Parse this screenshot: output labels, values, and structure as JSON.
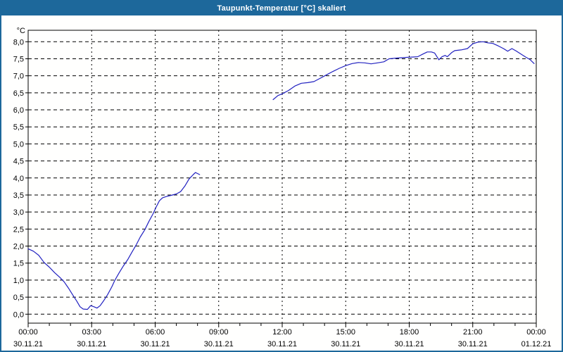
{
  "window": {
    "title": "Taupunkt-Temperatur [°C] skaliert"
  },
  "colors": {
    "titlebar": "#1d689b",
    "window_border": "#1d689b",
    "plot_border": "#000000",
    "grid": "#000000",
    "text": "#000000",
    "line": "#2121c0",
    "background": "#fffffe"
  },
  "chart_data": {
    "type": "line",
    "title": "Taupunkt-Temperatur [°C] skaliert",
    "ylabel": "°C",
    "xlabel": "",
    "ylim": [
      -0.26,
      8.34
    ],
    "ytick_step": 0.5,
    "grid": "dashed",
    "legend": "none",
    "x_hours_span": 24,
    "minor_tick_every_hours": 1,
    "yticks": [
      {
        "value": 8.0,
        "label": "8,0"
      },
      {
        "value": 7.5,
        "label": "7,5"
      },
      {
        "value": 7.0,
        "label": "7,0"
      },
      {
        "value": 6.5,
        "label": "6,5"
      },
      {
        "value": 6.0,
        "label": "6,0"
      },
      {
        "value": 5.5,
        "label": "5,5"
      },
      {
        "value": 5.0,
        "label": "5,0"
      },
      {
        "value": 4.5,
        "label": "4,5"
      },
      {
        "value": 4.0,
        "label": "4,0"
      },
      {
        "value": 3.5,
        "label": "3,5"
      },
      {
        "value": 3.0,
        "label": "3,0"
      },
      {
        "value": 2.5,
        "label": "2,5"
      },
      {
        "value": 2.0,
        "label": "2,0"
      },
      {
        "value": 1.5,
        "label": "1,5"
      },
      {
        "value": 1.0,
        "label": "1,0"
      },
      {
        "value": 0.5,
        "label": "0,5"
      },
      {
        "value": 0.0,
        "label": "0,0"
      }
    ],
    "xticks": [
      {
        "hour": 0,
        "time": "00:00",
        "date": "30.11.21"
      },
      {
        "hour": 3,
        "time": "03:00",
        "date": "30.11.21"
      },
      {
        "hour": 6,
        "time": "06:00",
        "date": "30.11.21"
      },
      {
        "hour": 9,
        "time": "09:00",
        "date": "30.11.21"
      },
      {
        "hour": 12,
        "time": "12:00",
        "date": "30.11.21"
      },
      {
        "hour": 15,
        "time": "15:00",
        "date": "30.11.21"
      },
      {
        "hour": 18,
        "time": "18:00",
        "date": "30.11.21"
      },
      {
        "hour": 21,
        "time": "21:00",
        "date": "30.11.21"
      },
      {
        "hour": 24,
        "time": "00:00",
        "date": "01.12.21"
      }
    ],
    "series": [
      {
        "points": [
          [
            0.0,
            1.92
          ],
          [
            0.25,
            1.85
          ],
          [
            0.5,
            1.73
          ],
          [
            0.75,
            1.52
          ],
          [
            1.0,
            1.38
          ],
          [
            1.25,
            1.22
          ],
          [
            1.5,
            1.08
          ],
          [
            1.7,
            0.95
          ],
          [
            1.9,
            0.77
          ],
          [
            2.1,
            0.57
          ],
          [
            2.3,
            0.38
          ],
          [
            2.45,
            0.22
          ],
          [
            2.6,
            0.15
          ],
          [
            2.8,
            0.14
          ],
          [
            2.95,
            0.25
          ],
          [
            3.1,
            0.22
          ],
          [
            3.25,
            0.18
          ],
          [
            3.4,
            0.25
          ],
          [
            3.55,
            0.38
          ],
          [
            3.75,
            0.57
          ],
          [
            3.95,
            0.8
          ],
          [
            4.1,
            1.0
          ],
          [
            4.3,
            1.22
          ],
          [
            4.5,
            1.42
          ],
          [
            4.7,
            1.6
          ],
          [
            4.9,
            1.82
          ],
          [
            5.1,
            2.03
          ],
          [
            5.3,
            2.27
          ],
          [
            5.5,
            2.47
          ],
          [
            5.7,
            2.72
          ],
          [
            5.9,
            2.95
          ],
          [
            6.05,
            3.15
          ],
          [
            6.2,
            3.33
          ],
          [
            6.35,
            3.42
          ],
          [
            6.55,
            3.46
          ],
          [
            6.75,
            3.49
          ],
          [
            7.0,
            3.53
          ],
          [
            7.2,
            3.6
          ],
          [
            7.4,
            3.76
          ],
          [
            7.6,
            3.97
          ],
          [
            7.8,
            4.1
          ],
          [
            7.9,
            4.16
          ],
          [
            8.0,
            4.13
          ],
          [
            8.1,
            4.1
          ]
        ]
      },
      {
        "points": [
          [
            11.57,
            6.3
          ],
          [
            11.8,
            6.42
          ],
          [
            12.0,
            6.47
          ],
          [
            12.3,
            6.57
          ],
          [
            12.6,
            6.7
          ],
          [
            12.9,
            6.78
          ],
          [
            13.2,
            6.8
          ],
          [
            13.5,
            6.83
          ],
          [
            13.8,
            6.93
          ],
          [
            14.1,
            7.03
          ],
          [
            14.4,
            7.13
          ],
          [
            14.7,
            7.22
          ],
          [
            15.0,
            7.3
          ],
          [
            15.3,
            7.36
          ],
          [
            15.6,
            7.39
          ],
          [
            15.9,
            7.38
          ],
          [
            16.2,
            7.35
          ],
          [
            16.5,
            7.38
          ],
          [
            16.8,
            7.41
          ],
          [
            17.05,
            7.5
          ],
          [
            17.4,
            7.52
          ],
          [
            17.8,
            7.54
          ],
          [
            18.1,
            7.55
          ],
          [
            18.4,
            7.56
          ],
          [
            18.65,
            7.64
          ],
          [
            18.85,
            7.7
          ],
          [
            19.05,
            7.7
          ],
          [
            19.2,
            7.67
          ],
          [
            19.4,
            7.47
          ],
          [
            19.55,
            7.56
          ],
          [
            19.7,
            7.6
          ],
          [
            19.8,
            7.56
          ],
          [
            20.0,
            7.68
          ],
          [
            20.15,
            7.74
          ],
          [
            20.45,
            7.76
          ],
          [
            20.75,
            7.8
          ],
          [
            21.0,
            7.94
          ],
          [
            21.25,
            7.99
          ],
          [
            21.5,
            8.0
          ],
          [
            21.7,
            7.97
          ],
          [
            21.95,
            7.95
          ],
          [
            22.2,
            7.88
          ],
          [
            22.45,
            7.8
          ],
          [
            22.65,
            7.72
          ],
          [
            22.85,
            7.8
          ],
          [
            23.05,
            7.73
          ],
          [
            23.25,
            7.65
          ],
          [
            23.5,
            7.55
          ],
          [
            23.7,
            7.48
          ],
          [
            23.9,
            7.36
          ]
        ]
      }
    ]
  }
}
